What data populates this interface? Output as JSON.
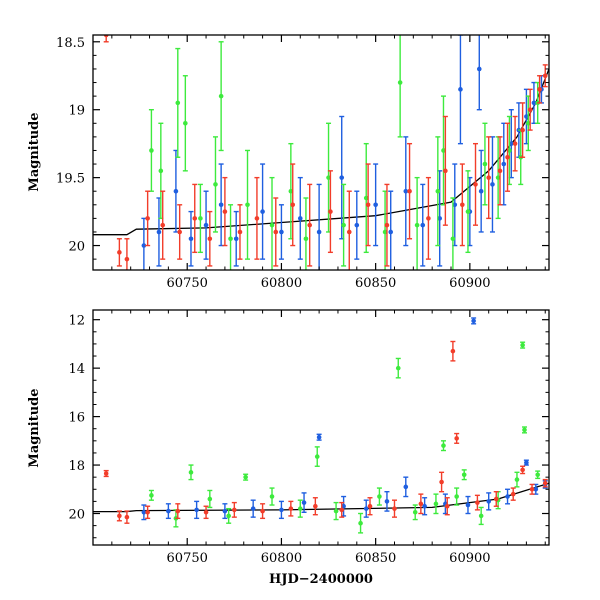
{
  "chart_data": [
    {
      "type": "scatter",
      "panel": "top",
      "xlabel": "",
      "ylabel": "Magnitude",
      "xlim": [
        60700,
        60942
      ],
      "ylim": [
        20.18,
        18.45
      ],
      "y_inverted": true,
      "xticks": [
        60750,
        60800,
        60850,
        60900
      ],
      "xtick_labels": [
        "60750",
        "60800",
        "60850",
        "60900"
      ],
      "yticks": [
        18.5,
        19,
        19.5,
        20
      ],
      "ytick_labels": [
        "18.5",
        "19",
        "19.5",
        "20"
      ],
      "grid": false,
      "legend": "none",
      "error_bars": true,
      "series": [
        {
          "color": "#1f5fe0",
          "points": [
            [
              60727,
              20.0,
              0.2
            ],
            [
              60735,
              19.9,
              0.25
            ],
            [
              60744,
              19.6,
              0.3
            ],
            [
              60752,
              19.95,
              0.2
            ],
            [
              60760,
              19.85,
              0.25
            ],
            [
              60768,
              19.7,
              0.3
            ],
            [
              60776,
              19.95,
              0.2
            ],
            [
              60790,
              19.75,
              0.35
            ],
            [
              60800,
              19.9,
              0.2
            ],
            [
              60810,
              19.8,
              0.3
            ],
            [
              60820,
              19.9,
              0.35
            ],
            [
              60832,
              19.5,
              0.45
            ],
            [
              60840,
              19.85,
              0.25
            ],
            [
              60850,
              19.7,
              0.3
            ],
            [
              60858,
              19.9,
              0.3
            ],
            [
              60866,
              19.6,
              0.4
            ],
            [
              60875,
              19.85,
              0.3
            ],
            [
              60884,
              19.8,
              0.35
            ],
            [
              60892,
              19.7,
              0.3
            ],
            [
              60900,
              19.75,
              0.25
            ],
            [
              60906,
              19.6,
              0.3
            ],
            [
              60912,
              19.55,
              0.35
            ],
            [
              60918,
              19.4,
              0.3
            ],
            [
              60922,
              19.25,
              0.25
            ],
            [
              60926,
              19.15,
              0.2
            ],
            [
              60930,
              19.05,
              0.2
            ],
            [
              60934,
              18.95,
              0.15
            ],
            [
              60938,
              18.85,
              0.1
            ],
            [
              60905,
              18.7,
              0.3
            ],
            [
              60895,
              18.85,
              0.4
            ]
          ]
        },
        {
          "color": "#3dea3d",
          "points": [
            [
              60731,
              19.3,
              0.3
            ],
            [
              60736,
              19.45,
              0.35
            ],
            [
              60745,
              18.95,
              0.4
            ],
            [
              60757,
              19.8,
              0.25
            ],
            [
              60765,
              19.55,
              0.35
            ],
            [
              60773,
              19.95,
              0.25
            ],
            [
              60782,
              19.7,
              0.4
            ],
            [
              60795,
              19.85,
              0.35
            ],
            [
              60805,
              19.6,
              0.35
            ],
            [
              60813,
              19.95,
              0.3
            ],
            [
              60825,
              19.5,
              0.4
            ],
            [
              60833,
              19.85,
              0.3
            ],
            [
              60845,
              19.65,
              0.4
            ],
            [
              60855,
              19.9,
              0.3
            ],
            [
              60863,
              18.8,
              0.4
            ],
            [
              60872,
              19.85,
              0.35
            ],
            [
              60883,
              19.6,
              0.4
            ],
            [
              60891,
              19.95,
              0.3
            ],
            [
              60899,
              19.75,
              0.3
            ],
            [
              60908,
              19.4,
              0.3
            ],
            [
              60915,
              19.5,
              0.3
            ],
            [
              60921,
              19.3,
              0.25
            ],
            [
              60927,
              19.35,
              0.2
            ],
            [
              60931,
              19.1,
              0.2
            ],
            [
              60936,
              18.95,
              0.15
            ],
            [
              60749,
              19.1,
              0.35
            ],
            [
              60768,
              18.9,
              0.4
            ],
            [
              60886,
              19.3,
              0.4
            ]
          ]
        },
        {
          "color": "#f23d2a",
          "points": [
            [
              60707,
              18.45,
              0.05
            ],
            [
              60714,
              20.05,
              0.1
            ],
            [
              60718,
              20.1,
              0.15
            ],
            [
              60729,
              19.8,
              0.2
            ],
            [
              60737,
              19.85,
              0.25
            ],
            [
              60746,
              19.9,
              0.2
            ],
            [
              60754,
              19.8,
              0.25
            ],
            [
              60762,
              19.95,
              0.2
            ],
            [
              60770,
              19.75,
              0.25
            ],
            [
              60778,
              19.9,
              0.2
            ],
            [
              60787,
              19.8,
              0.3
            ],
            [
              60797,
              19.9,
              0.25
            ],
            [
              60806,
              19.7,
              0.3
            ],
            [
              60815,
              19.85,
              0.3
            ],
            [
              60826,
              19.75,
              0.3
            ],
            [
              60836,
              19.9,
              0.3
            ],
            [
              60846,
              19.7,
              0.3
            ],
            [
              60856,
              19.85,
              0.3
            ],
            [
              60868,
              19.6,
              0.35
            ],
            [
              60878,
              19.8,
              0.3
            ],
            [
              60887,
              19.45,
              0.4
            ],
            [
              60896,
              19.7,
              0.3
            ],
            [
              60903,
              19.55,
              0.3
            ],
            [
              60910,
              19.5,
              0.3
            ],
            [
              60916,
              19.45,
              0.25
            ],
            [
              60920,
              19.35,
              0.25
            ],
            [
              60924,
              19.25,
              0.2
            ],
            [
              60928,
              19.15,
              0.2
            ],
            [
              60932,
              19.0,
              0.15
            ],
            [
              60937,
              18.85,
              0.1
            ],
            [
              60940,
              18.75,
              0.08
            ]
          ]
        }
      ],
      "reference_line": [
        [
          60700,
          19.92
        ],
        [
          60718,
          19.92
        ],
        [
          60723,
          19.88
        ],
        [
          60760,
          19.87
        ],
        [
          60800,
          19.83
        ],
        [
          60850,
          19.78
        ],
        [
          60890,
          19.68
        ],
        [
          60910,
          19.45
        ],
        [
          60925,
          19.2
        ],
        [
          60935,
          18.95
        ],
        [
          60942,
          18.7
        ]
      ]
    },
    {
      "type": "scatter",
      "panel": "bottom",
      "xlabel": "HJD−2400000",
      "ylabel": "Magnitude",
      "xlim": [
        60700,
        60942
      ],
      "ylim": [
        21.3,
        11.6
      ],
      "y_inverted": true,
      "xticks": [
        60750,
        60800,
        60850,
        60900
      ],
      "xtick_labels": [
        "60750",
        "60800",
        "60850",
        "60900"
      ],
      "yticks": [
        12,
        14,
        16,
        18,
        20
      ],
      "ytick_labels": [
        "12",
        "14",
        "16",
        "18",
        "20"
      ],
      "grid": false,
      "legend": "none",
      "error_bars": true,
      "series": [
        {
          "color": "#1f5fe0",
          "points": [
            [
              60727,
              19.95,
              0.3
            ],
            [
              60740,
              19.9,
              0.3
            ],
            [
              60755,
              19.85,
              0.35
            ],
            [
              60770,
              19.9,
              0.3
            ],
            [
              60785,
              19.8,
              0.35
            ],
            [
              60800,
              19.85,
              0.35
            ],
            [
              60812,
              19.55,
              0.4
            ],
            [
              60820,
              16.85,
              0.12
            ],
            [
              60833,
              19.7,
              0.4
            ],
            [
              60845,
              19.8,
              0.35
            ],
            [
              60856,
              19.5,
              0.4
            ],
            [
              60866,
              18.9,
              0.4
            ],
            [
              60876,
              19.7,
              0.35
            ],
            [
              60887,
              19.6,
              0.4
            ],
            [
              60899,
              19.65,
              0.35
            ],
            [
              60902,
              12.05,
              0.12
            ],
            [
              60910,
              19.5,
              0.35
            ],
            [
              60920,
              19.3,
              0.3
            ],
            [
              60930,
              17.9,
              0.1
            ],
            [
              60935,
              19.0,
              0.2
            ],
            [
              60940,
              18.8,
              0.15
            ]
          ]
        },
        {
          "color": "#3dea3d",
          "points": [
            [
              60731,
              19.25,
              0.2
            ],
            [
              60744,
              20.2,
              0.35
            ],
            [
              60752,
              18.3,
              0.3
            ],
            [
              60762,
              19.4,
              0.35
            ],
            [
              60772,
              20.1,
              0.3
            ],
            [
              60781,
              18.5,
              0.12
            ],
            [
              60795,
              19.3,
              0.35
            ],
            [
              60810,
              19.8,
              0.35
            ],
            [
              60819,
              17.65,
              0.4
            ],
            [
              60829,
              19.9,
              0.35
            ],
            [
              60842,
              20.4,
              0.4
            ],
            [
              60852,
              19.3,
              0.35
            ],
            [
              60862,
              14.0,
              0.4
            ],
            [
              60871,
              19.95,
              0.3
            ],
            [
              60882,
              19.6,
              0.4
            ],
            [
              60886,
              17.2,
              0.2
            ],
            [
              60893,
              19.3,
              0.35
            ],
            [
              60897,
              18.4,
              0.2
            ],
            [
              60906,
              20.1,
              0.35
            ],
            [
              60915,
              19.45,
              0.35
            ],
            [
              60925,
              18.6,
              0.3
            ],
            [
              60928,
              13.05,
              0.12
            ],
            [
              60929,
              16.55,
              0.12
            ],
            [
              60936,
              18.4,
              0.15
            ]
          ]
        },
        {
          "color": "#f23d2a",
          "points": [
            [
              60707,
              18.35,
              0.12
            ],
            [
              60714,
              20.1,
              0.2
            ],
            [
              60718,
              20.15,
              0.25
            ],
            [
              60729,
              19.95,
              0.25
            ],
            [
              60745,
              19.9,
              0.3
            ],
            [
              60760,
              19.95,
              0.25
            ],
            [
              60775,
              19.85,
              0.3
            ],
            [
              60790,
              19.9,
              0.3
            ],
            [
              60805,
              19.8,
              0.3
            ],
            [
              60818,
              19.7,
              0.35
            ],
            [
              60832,
              19.85,
              0.3
            ],
            [
              60847,
              19.7,
              0.35
            ],
            [
              60860,
              19.8,
              0.35
            ],
            [
              60874,
              19.6,
              0.4
            ],
            [
              60885,
              18.7,
              0.4
            ],
            [
              60888,
              19.7,
              0.35
            ],
            [
              60891,
              13.3,
              0.4
            ],
            [
              60893,
              16.9,
              0.2
            ],
            [
              60904,
              19.55,
              0.3
            ],
            [
              60914,
              19.4,
              0.3
            ],
            [
              60923,
              19.2,
              0.25
            ],
            [
              60928,
              18.2,
              0.15
            ],
            [
              60933,
              19.0,
              0.2
            ],
            [
              60940,
              18.75,
              0.15
            ]
          ]
        }
      ],
      "reference_line": [
        [
          60700,
          19.92
        ],
        [
          60718,
          19.92
        ],
        [
          60723,
          19.88
        ],
        [
          60800,
          19.85
        ],
        [
          60880,
          19.75
        ],
        [
          60915,
          19.4
        ],
        [
          60942,
          18.75
        ]
      ]
    }
  ]
}
